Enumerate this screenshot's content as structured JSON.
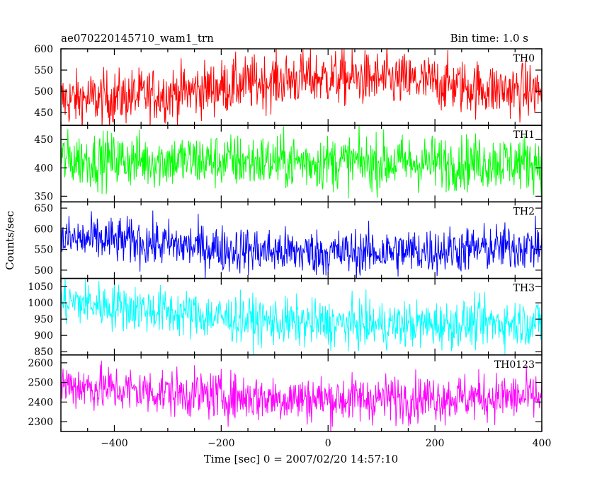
{
  "chart_data": {
    "type": "line",
    "title_left": "ae070220145710_wam1_trn",
    "title_right": "Bin time: 1.0 s",
    "xlabel": "Time [sec] 0 = 2007/02/20 14:57:10",
    "ylabel": "Counts/sec",
    "xlim": [
      -500,
      400
    ],
    "x_ticks": [
      -400,
      -200,
      0,
      200,
      400
    ],
    "x_tick_labels": [
      "−400",
      "−200",
      "0",
      "200",
      "400"
    ],
    "panels": [
      {
        "name": "TH0",
        "color": "#ff0000",
        "ylim": [
          420,
          600
        ],
        "y_ticks": [
          450,
          500,
          550,
          600
        ],
        "x": [
          -500,
          -450,
          -400,
          -350,
          -300,
          -250,
          -200,
          -150,
          -100,
          -50,
          0,
          50,
          100,
          150,
          200,
          250,
          300,
          350,
          400
        ],
        "values": [
          480,
          482,
          485,
          490,
          495,
          502,
          510,
          518,
          525,
          530,
          532,
          530,
          528,
          524,
          520,
          512,
          505,
          502,
          500
        ],
        "noise": 32
      },
      {
        "name": "TH1",
        "color": "#00ff00",
        "ylim": [
          340,
          475
        ],
        "y_ticks": [
          350,
          400,
          450
        ],
        "x": [
          -500,
          -400,
          -300,
          -200,
          -100,
          0,
          100,
          200,
          300,
          400
        ],
        "values": [
          415,
          414,
          413,
          412,
          411,
          410,
          409,
          409,
          410,
          410
        ],
        "noise": 24
      },
      {
        "name": "TH2",
        "color": "#0000ff",
        "ylim": [
          480,
          665
        ],
        "y_ticks": [
          500,
          550,
          600,
          650
        ],
        "x": [
          -500,
          -400,
          -300,
          -200,
          -100,
          0,
          100,
          200,
          300,
          400
        ],
        "values": [
          575,
          572,
          562,
          552,
          545,
          542,
          543,
          547,
          553,
          558
        ],
        "noise": 28
      },
      {
        "name": "TH3",
        "color": "#00ffff",
        "ylim": [
          840,
          1075
        ],
        "y_ticks": [
          850,
          900,
          950,
          1000,
          1050
        ],
        "x": [
          -500,
          -400,
          -300,
          -200,
          -100,
          0,
          100,
          200,
          300,
          400
        ],
        "values": [
          1005,
          990,
          972,
          955,
          942,
          935,
          932,
          934,
          938,
          940
        ],
        "noise": 36
      },
      {
        "name": "TH0123",
        "color": "#ff00ff",
        "ylim": [
          2250,
          2640
        ],
        "y_ticks": [
          2300,
          2400,
          2500,
          2600
        ],
        "x": [
          -500,
          -400,
          -300,
          -200,
          -100,
          0,
          100,
          200,
          300,
          400
        ],
        "values": [
          2490,
          2465,
          2448,
          2430,
          2420,
          2415,
          2418,
          2422,
          2425,
          2425
        ],
        "noise": 60
      }
    ]
  }
}
